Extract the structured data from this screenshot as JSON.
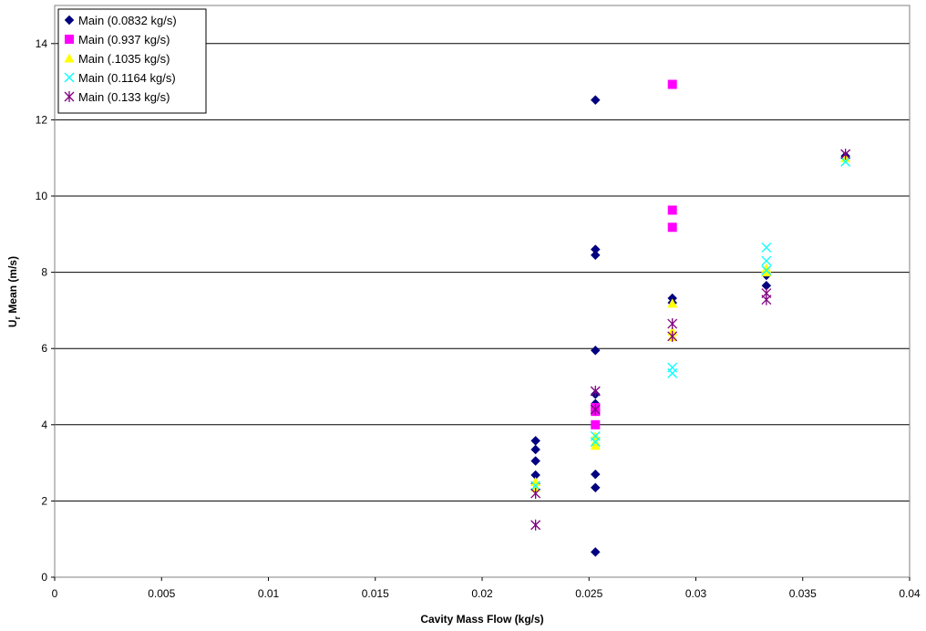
{
  "chart_data": {
    "type": "scatter",
    "xlabel": "Cavity Mass Flow (kg/s)",
    "ylabel_main": "U",
    "ylabel_sub": "r",
    "ylabel_rest": " Mean (m/s)",
    "xlim": [
      0,
      0.04
    ],
    "ylim": [
      0,
      15
    ],
    "x_ticks": [
      0,
      0.005,
      0.01,
      0.015,
      0.02,
      0.025,
      0.03,
      0.035,
      0.04
    ],
    "x_tick_labels": [
      "0",
      "0.005",
      "0.01",
      "0.015",
      "0.02",
      "0.025",
      "0.03",
      "0.035",
      "0.04"
    ],
    "y_ticks": [
      0,
      2,
      4,
      6,
      8,
      10,
      12,
      14
    ],
    "y_tick_labels": [
      "0",
      "2",
      "4",
      "6",
      "8",
      "10",
      "12",
      "14"
    ],
    "grid": "horizontal major lines",
    "legend_position": "top-left",
    "series": [
      {
        "name": "Main (0.0832 kg/s)",
        "marker": "diamond",
        "color": "#000080",
        "points": [
          [
            0.0225,
            3.58
          ],
          [
            0.0225,
            3.35
          ],
          [
            0.0225,
            3.05
          ],
          [
            0.0225,
            2.68
          ],
          [
            0.0225,
            2.45
          ],
          [
            0.0253,
            12.52
          ],
          [
            0.0253,
            8.6
          ],
          [
            0.0253,
            8.45
          ],
          [
            0.0253,
            5.95
          ],
          [
            0.0253,
            4.8
          ],
          [
            0.0253,
            4.55
          ],
          [
            0.0253,
            4.35
          ],
          [
            0.0253,
            2.7
          ],
          [
            0.0253,
            2.35
          ],
          [
            0.0253,
            0.66
          ],
          [
            0.0289,
            7.32
          ],
          [
            0.0289,
            7.2
          ],
          [
            0.0333,
            7.92
          ],
          [
            0.0333,
            7.65
          ],
          [
            0.037,
            11.05
          ]
        ]
      },
      {
        "name": "Main (0.937 kg/s)",
        "marker": "square",
        "color": "#ff00ff",
        "points": [
          [
            0.0253,
            4.45
          ],
          [
            0.0253,
            4.35
          ],
          [
            0.0253,
            4.0
          ],
          [
            0.0289,
            12.93
          ],
          [
            0.0289,
            9.63
          ],
          [
            0.0289,
            9.18
          ]
        ]
      },
      {
        "name": "Main (.1035 kg/s)",
        "marker": "triangle",
        "color": "#ffff00",
        "points": [
          [
            0.0225,
            2.5
          ],
          [
            0.0225,
            2.35
          ],
          [
            0.0253,
            3.7
          ],
          [
            0.0253,
            3.55
          ],
          [
            0.0253,
            3.45
          ],
          [
            0.0289,
            7.18
          ],
          [
            0.0289,
            6.45
          ],
          [
            0.0289,
            6.3
          ],
          [
            0.0333,
            8.1
          ],
          [
            0.0333,
            8.0
          ],
          [
            0.037,
            11.0
          ]
        ]
      },
      {
        "name": "Main (0.1164 kg/s)",
        "marker": "x",
        "color": "#00ffff",
        "points": [
          [
            0.0225,
            2.4
          ],
          [
            0.0253,
            3.7
          ],
          [
            0.0253,
            3.55
          ],
          [
            0.0289,
            5.5
          ],
          [
            0.0289,
            5.35
          ],
          [
            0.0333,
            8.65
          ],
          [
            0.0333,
            8.3
          ],
          [
            0.0333,
            8.05
          ],
          [
            0.037,
            10.9
          ]
        ]
      },
      {
        "name": "Main (0.133 kg/s)",
        "marker": "star",
        "color": "#800080",
        "points": [
          [
            0.0225,
            2.2
          ],
          [
            0.0225,
            1.37
          ],
          [
            0.0253,
            4.88
          ],
          [
            0.0253,
            4.4
          ],
          [
            0.0289,
            6.65
          ],
          [
            0.0289,
            6.32
          ],
          [
            0.0333,
            7.45
          ],
          [
            0.0333,
            7.28
          ],
          [
            0.037,
            11.1
          ]
        ]
      }
    ]
  }
}
